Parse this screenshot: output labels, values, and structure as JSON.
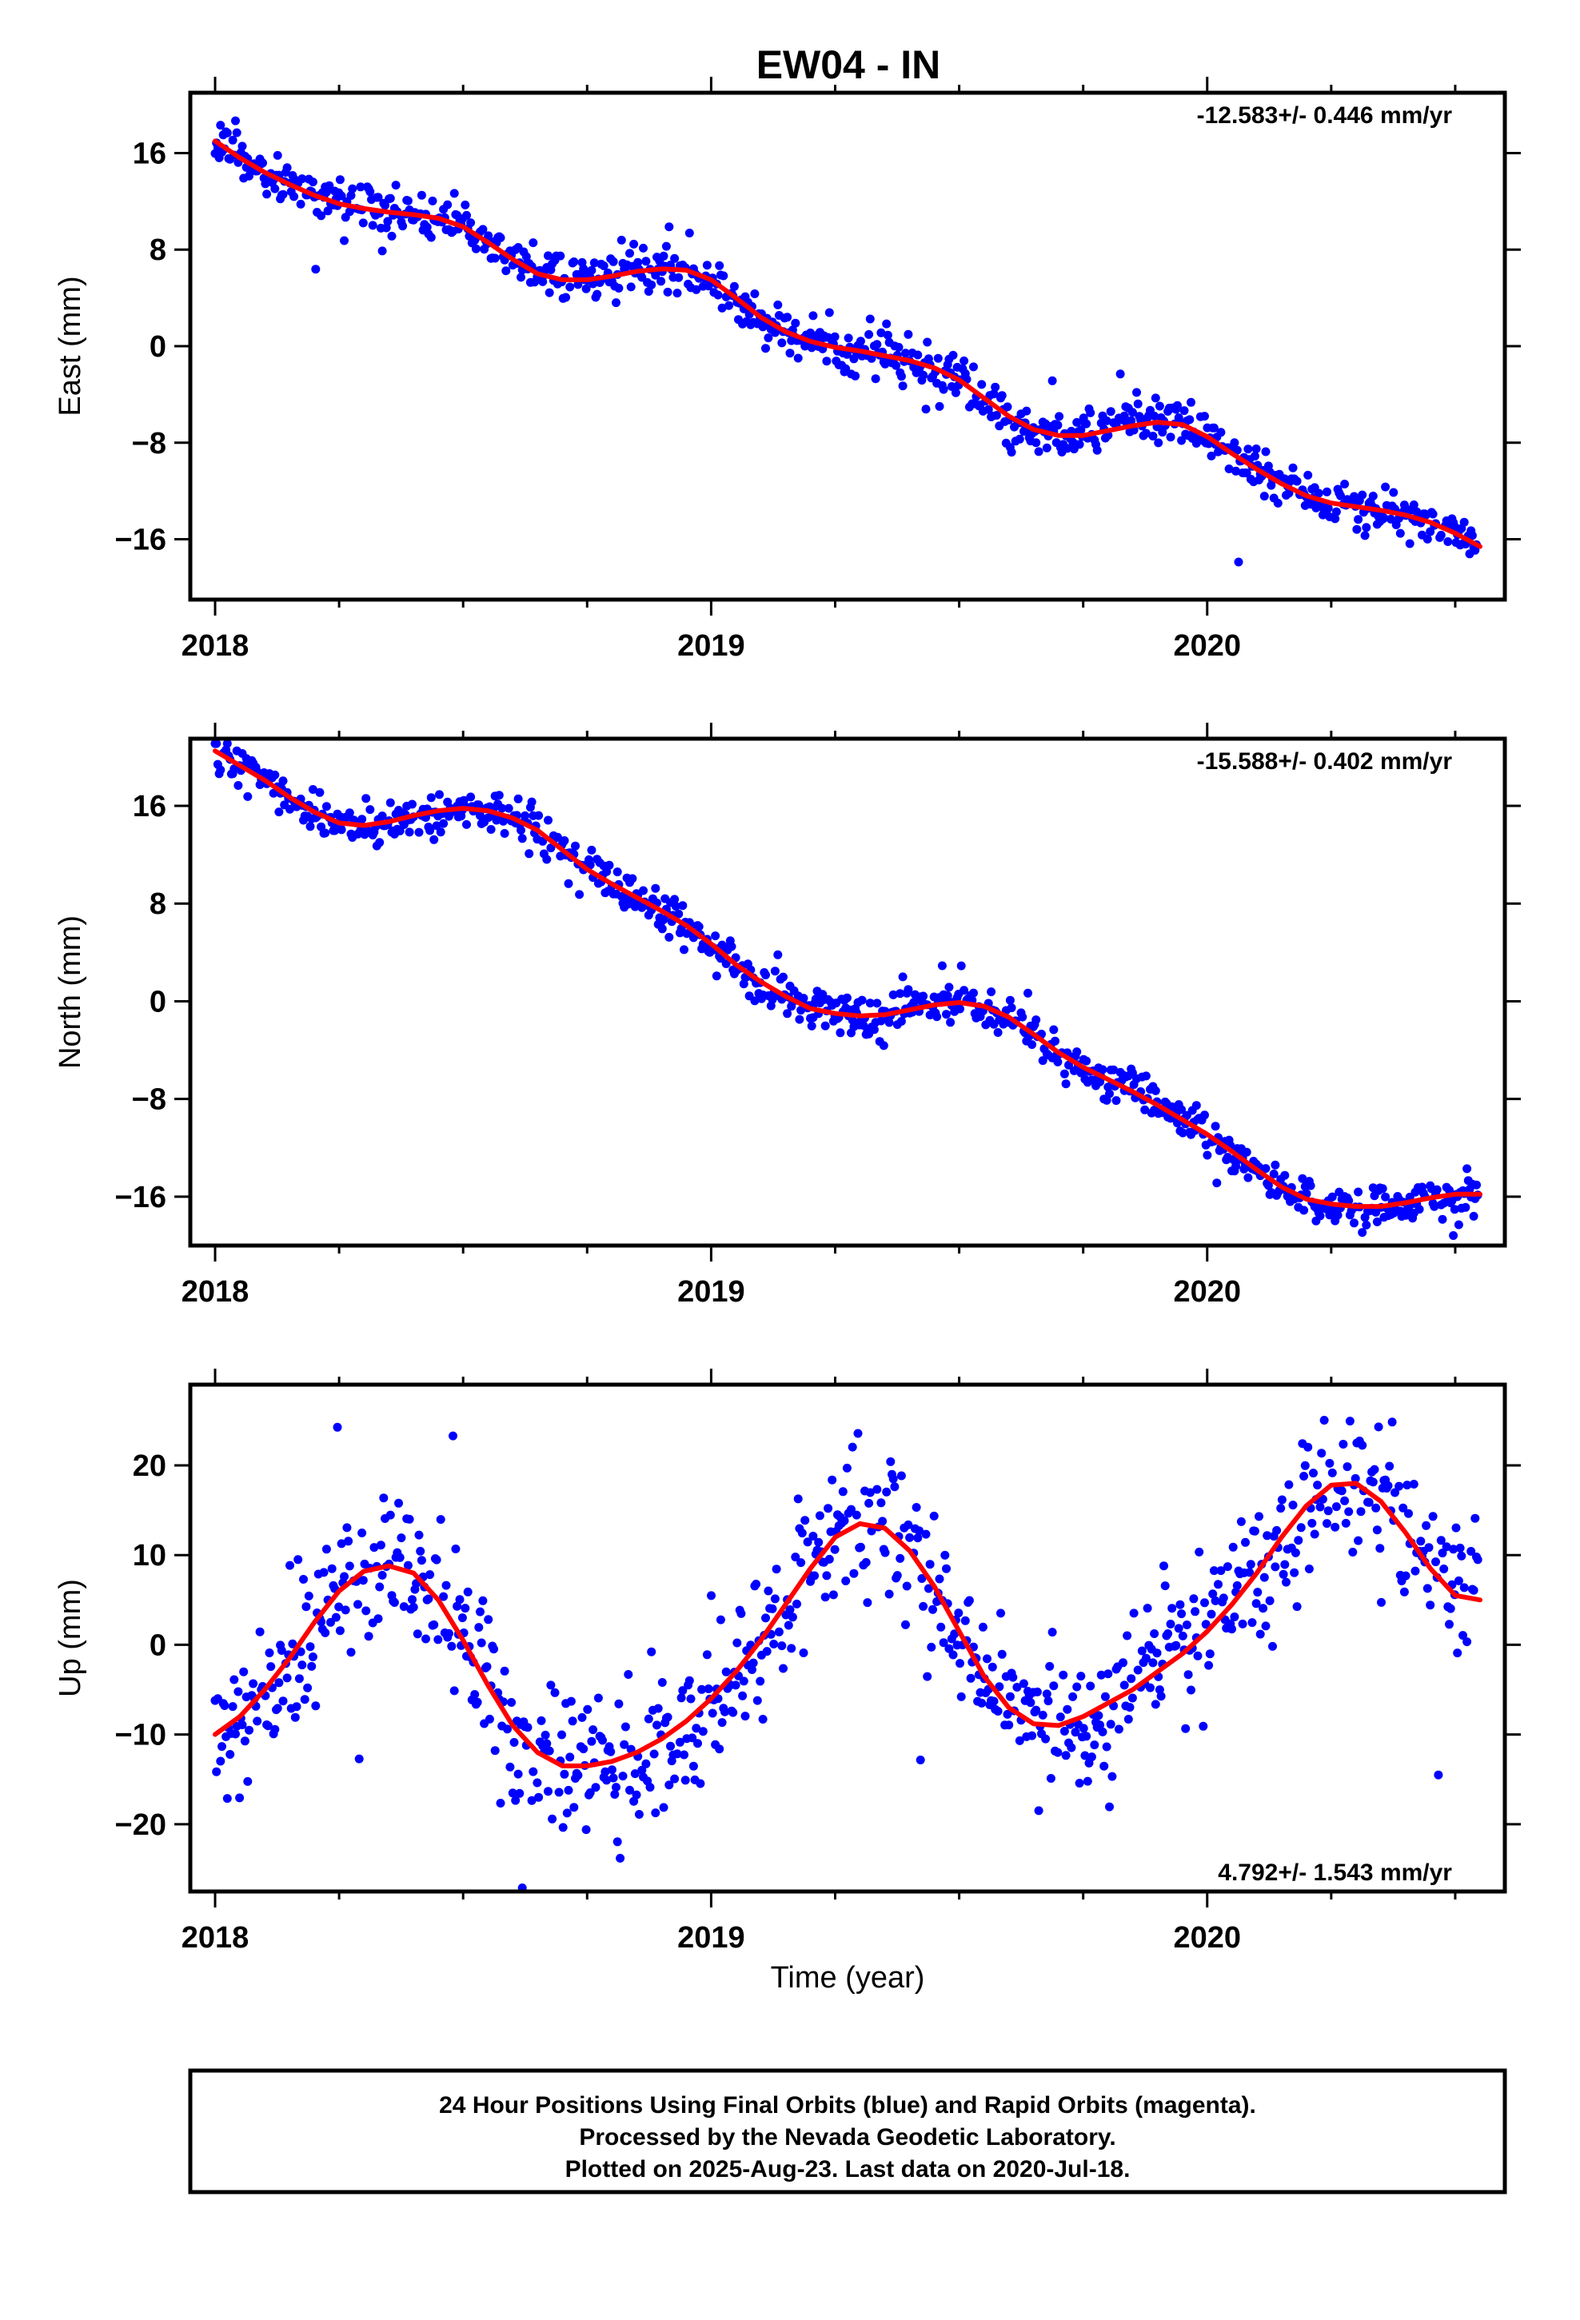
{
  "title": "EW04 - IN",
  "colors": {
    "data": "#0000ff",
    "fit": "#ff0000",
    "frame": "#000000"
  },
  "x_axis": {
    "label": "Time (year)",
    "ticks": [
      2018,
      2019,
      2020
    ],
    "tick_labels": [
      "2018",
      "2019",
      "2020"
    ],
    "range": [
      2017.95,
      2020.6
    ]
  },
  "footer": {
    "lines": [
      "24 Hour Positions Using Final Orbits (blue) and Rapid Orbits (magenta).",
      "Processed by the Nevada Geodetic Laboratory.",
      "Plotted on 2025-Aug-23. Last data on 2020-Jul-18."
    ]
  },
  "chart_data": [
    {
      "type": "scatter",
      "ylabel": "East (mm)",
      "rate_label": "-12.583+/- 0.446 mm/yr",
      "rate_position": "top-right",
      "ylim": [
        -21,
        21
      ],
      "yticks": [
        16,
        8,
        0,
        -8,
        -16
      ],
      "ytick_labels": [
        "16",
        "8",
        "0",
        "−8",
        "−16"
      ],
      "series": [
        {
          "kind": "points",
          "x": [
            2018.0,
            2018.05,
            2018.1,
            2018.15,
            2018.2,
            2018.25,
            2018.3,
            2018.35,
            2018.4,
            2018.45,
            2018.5,
            2018.55,
            2018.6,
            2018.65,
            2018.7,
            2018.75,
            2018.8,
            2018.85,
            2018.9,
            2018.95,
            2019.0,
            2019.05,
            2019.1,
            2019.15,
            2019.2,
            2019.25,
            2019.3,
            2019.35,
            2019.4,
            2019.45,
            2019.5,
            2019.55,
            2019.6,
            2019.65,
            2019.7,
            2019.75,
            2019.8,
            2019.85,
            2019.9,
            2019.95,
            2020.0,
            2020.05,
            2020.1,
            2020.15,
            2020.2,
            2020.25,
            2020.3,
            2020.35,
            2020.4,
            2020.45,
            2020.5,
            2020.55
          ],
          "y": [
            17.0,
            15.6,
            14.4,
            13.4,
            12.5,
            11.8,
            11.4,
            11.1,
            10.9,
            10.6,
            9.9,
            8.6,
            7.2,
            6.0,
            5.5,
            5.5,
            5.8,
            6.2,
            6.4,
            6.3,
            5.5,
            4.0,
            2.4,
            1.2,
            0.4,
            -0.1,
            -0.4,
            -0.8,
            -1.2,
            -1.8,
            -2.8,
            -4.3,
            -5.8,
            -6.9,
            -7.4,
            -7.4,
            -7.0,
            -6.6,
            -6.3,
            -6.5,
            -7.5,
            -8.9,
            -10.2,
            -11.4,
            -12.4,
            -13.0,
            -13.3,
            -13.6,
            -14.0,
            -14.6,
            -15.5,
            -16.6
          ],
          "scatter_mm": 0.95
        },
        {
          "kind": "fit",
          "x": [
            2018.0,
            2018.05,
            2018.1,
            2018.15,
            2018.2,
            2018.25,
            2018.3,
            2018.35,
            2018.4,
            2018.45,
            2018.5,
            2018.55,
            2018.6,
            2018.65,
            2018.7,
            2018.75,
            2018.8,
            2018.85,
            2018.9,
            2018.95,
            2019.0,
            2019.05,
            2019.1,
            2019.15,
            2019.2,
            2019.25,
            2019.3,
            2019.35,
            2019.4,
            2019.45,
            2019.5,
            2019.55,
            2019.6,
            2019.65,
            2019.7,
            2019.75,
            2019.8,
            2019.85,
            2019.9,
            2019.95,
            2020.0,
            2020.05,
            2020.1,
            2020.15,
            2020.2,
            2020.25,
            2020.3,
            2020.35,
            2020.4,
            2020.45,
            2020.5,
            2020.55
          ],
          "y": [
            17.0,
            15.6,
            14.4,
            13.4,
            12.5,
            11.8,
            11.4,
            11.1,
            10.9,
            10.6,
            9.9,
            8.6,
            7.2,
            6.0,
            5.5,
            5.5,
            5.8,
            6.2,
            6.4,
            6.3,
            5.5,
            4.0,
            2.4,
            1.2,
            0.4,
            -0.1,
            -0.4,
            -0.8,
            -1.2,
            -1.8,
            -2.8,
            -4.3,
            -5.8,
            -6.9,
            -7.4,
            -7.4,
            -7.0,
            -6.6,
            -6.3,
            -6.5,
            -7.5,
            -8.9,
            -10.2,
            -11.4,
            -12.4,
            -13.0,
            -13.3,
            -13.6,
            -14.0,
            -14.6,
            -15.5,
            -16.6
          ]
        }
      ]
    },
    {
      "type": "scatter",
      "ylabel": "North (mm)",
      "rate_label": "-15.588+/- 0.402 mm/yr",
      "rate_position": "top-right",
      "ylim": [
        -20,
        21.5
      ],
      "yticks": [
        16,
        8,
        0,
        -8,
        -16
      ],
      "ytick_labels": [
        "16",
        "8",
        "0",
        "−8",
        "−16"
      ],
      "series": [
        {
          "kind": "points",
          "x": [
            2018.0,
            2018.05,
            2018.1,
            2018.15,
            2018.2,
            2018.25,
            2018.3,
            2018.35,
            2018.4,
            2018.45,
            2018.5,
            2018.55,
            2018.6,
            2018.65,
            2018.7,
            2018.75,
            2018.8,
            2018.85,
            2018.9,
            2018.95,
            2019.0,
            2019.05,
            2019.1,
            2019.15,
            2019.2,
            2019.25,
            2019.3,
            2019.35,
            2019.4,
            2019.45,
            2019.5,
            2019.55,
            2019.6,
            2019.65,
            2019.7,
            2019.75,
            2019.8,
            2019.85,
            2019.9,
            2019.95,
            2020.0,
            2020.05,
            2020.1,
            2020.15,
            2020.2,
            2020.25,
            2020.3,
            2020.35,
            2020.4,
            2020.45,
            2020.5,
            2020.55
          ],
          "y": [
            20.5,
            19.3,
            18.1,
            16.7,
            15.5,
            14.6,
            14.4,
            14.7,
            15.2,
            15.6,
            15.8,
            15.6,
            15.0,
            14.0,
            12.4,
            10.8,
            9.6,
            8.5,
            7.4,
            6.2,
            4.7,
            3.0,
            1.6,
            0.4,
            -0.6,
            -1.0,
            -1.2,
            -1.1,
            -0.7,
            -0.3,
            -0.1,
            -0.4,
            -1.3,
            -2.7,
            -4.2,
            -5.4,
            -6.4,
            -7.4,
            -8.5,
            -9.7,
            -10.9,
            -12.3,
            -13.8,
            -15.2,
            -16.2,
            -16.6,
            -16.8,
            -16.8,
            -16.5,
            -16.1,
            -15.8,
            -15.8
          ],
          "scatter_mm": 0.85
        },
        {
          "kind": "fit",
          "x": [
            2018.0,
            2018.05,
            2018.1,
            2018.15,
            2018.2,
            2018.25,
            2018.3,
            2018.35,
            2018.4,
            2018.45,
            2018.5,
            2018.55,
            2018.6,
            2018.65,
            2018.7,
            2018.75,
            2018.8,
            2018.85,
            2018.9,
            2018.95,
            2019.0,
            2019.05,
            2019.1,
            2019.15,
            2019.2,
            2019.25,
            2019.3,
            2019.35,
            2019.4,
            2019.45,
            2019.5,
            2019.55,
            2019.6,
            2019.65,
            2019.7,
            2019.75,
            2019.8,
            2019.85,
            2019.9,
            2019.95,
            2020.0,
            2020.05,
            2020.1,
            2020.15,
            2020.2,
            2020.25,
            2020.3,
            2020.35,
            2020.4,
            2020.45,
            2020.5,
            2020.55
          ],
          "y": [
            20.5,
            19.3,
            18.1,
            16.7,
            15.5,
            14.6,
            14.4,
            14.7,
            15.2,
            15.6,
            15.8,
            15.6,
            15.0,
            14.0,
            12.4,
            10.8,
            9.6,
            8.5,
            7.4,
            6.2,
            4.7,
            3.0,
            1.6,
            0.4,
            -0.6,
            -1.0,
            -1.2,
            -1.1,
            -0.7,
            -0.3,
            -0.1,
            -0.4,
            -1.3,
            -2.7,
            -4.2,
            -5.4,
            -6.4,
            -7.4,
            -8.5,
            -9.7,
            -10.9,
            -12.3,
            -13.8,
            -15.2,
            -16.2,
            -16.6,
            -16.8,
            -16.8,
            -16.5,
            -16.1,
            -15.8,
            -15.8
          ]
        }
      ]
    },
    {
      "type": "scatter",
      "ylabel": "Up (mm)",
      "rate_label": "4.792+/- 1.543 mm/yr",
      "rate_position": "bottom-right",
      "ylim": [
        -27.5,
        29
      ],
      "yticks": [
        20,
        10,
        0,
        -10,
        -20
      ],
      "ytick_labels": [
        "20",
        "10",
        "0",
        "−10",
        "−20"
      ],
      "series": [
        {
          "kind": "points",
          "x": [
            2018.0,
            2018.05,
            2018.1,
            2018.15,
            2018.2,
            2018.25,
            2018.3,
            2018.35,
            2018.4,
            2018.45,
            2018.5,
            2018.55,
            2018.6,
            2018.65,
            2018.7,
            2018.75,
            2018.8,
            2018.85,
            2018.9,
            2018.95,
            2019.0,
            2019.05,
            2019.1,
            2019.15,
            2019.2,
            2019.25,
            2019.3,
            2019.35,
            2019.4,
            2019.45,
            2019.5,
            2019.55,
            2019.6,
            2019.65,
            2019.7,
            2019.75,
            2019.8,
            2019.85,
            2019.9,
            2019.95,
            2020.0,
            2020.05,
            2020.1,
            2020.15,
            2020.2,
            2020.25,
            2020.3,
            2020.35,
            2020.4,
            2020.45,
            2020.5,
            2020.55
          ],
          "y": [
            -10.0,
            -8.0,
            -5.0,
            -1.5,
            2.5,
            6.0,
            8.2,
            8.8,
            8.0,
            5.0,
            0.5,
            -4.5,
            -9.0,
            -12.0,
            -13.5,
            -13.5,
            -13.0,
            -12.0,
            -10.5,
            -8.5,
            -6.0,
            -3.0,
            0.5,
            4.5,
            8.5,
            12.0,
            13.5,
            13.0,
            10.5,
            6.5,
            1.5,
            -3.5,
            -7.0,
            -8.8,
            -9.0,
            -8.0,
            -6.5,
            -5.0,
            -3.0,
            -1.0,
            1.5,
            4.5,
            8.0,
            12.0,
            15.5,
            17.8,
            18.0,
            16.0,
            12.5,
            8.5,
            5.5,
            5.0
          ],
          "scatter_mm": 4.0
        },
        {
          "kind": "fit",
          "x": [
            2018.0,
            2018.05,
            2018.1,
            2018.15,
            2018.2,
            2018.25,
            2018.3,
            2018.35,
            2018.4,
            2018.45,
            2018.5,
            2018.55,
            2018.6,
            2018.65,
            2018.7,
            2018.75,
            2018.8,
            2018.85,
            2018.9,
            2018.95,
            2019.0,
            2019.05,
            2019.1,
            2019.15,
            2019.2,
            2019.25,
            2019.3,
            2019.35,
            2019.4,
            2019.45,
            2019.5,
            2019.55,
            2019.6,
            2019.65,
            2019.7,
            2019.75,
            2019.8,
            2019.85,
            2019.9,
            2019.95,
            2020.0,
            2020.05,
            2020.1,
            2020.15,
            2020.2,
            2020.25,
            2020.3,
            2020.35,
            2020.4,
            2020.45,
            2020.5,
            2020.55
          ],
          "y": [
            -10.0,
            -8.0,
            -5.0,
            -1.5,
            2.5,
            6.0,
            8.2,
            8.8,
            8.0,
            5.0,
            0.5,
            -4.5,
            -9.0,
            -12.0,
            -13.5,
            -13.5,
            -13.0,
            -12.0,
            -10.5,
            -8.5,
            -6.0,
            -3.0,
            0.5,
            4.5,
            8.5,
            12.0,
            13.5,
            13.0,
            10.5,
            6.5,
            1.5,
            -3.5,
            -7.0,
            -8.8,
            -9.0,
            -8.0,
            -6.5,
            -5.0,
            -3.0,
            -1.0,
            1.5,
            4.5,
            8.0,
            12.0,
            15.5,
            17.8,
            18.0,
            16.0,
            12.5,
            8.5,
            5.5,
            5.0
          ]
        }
      ]
    }
  ]
}
